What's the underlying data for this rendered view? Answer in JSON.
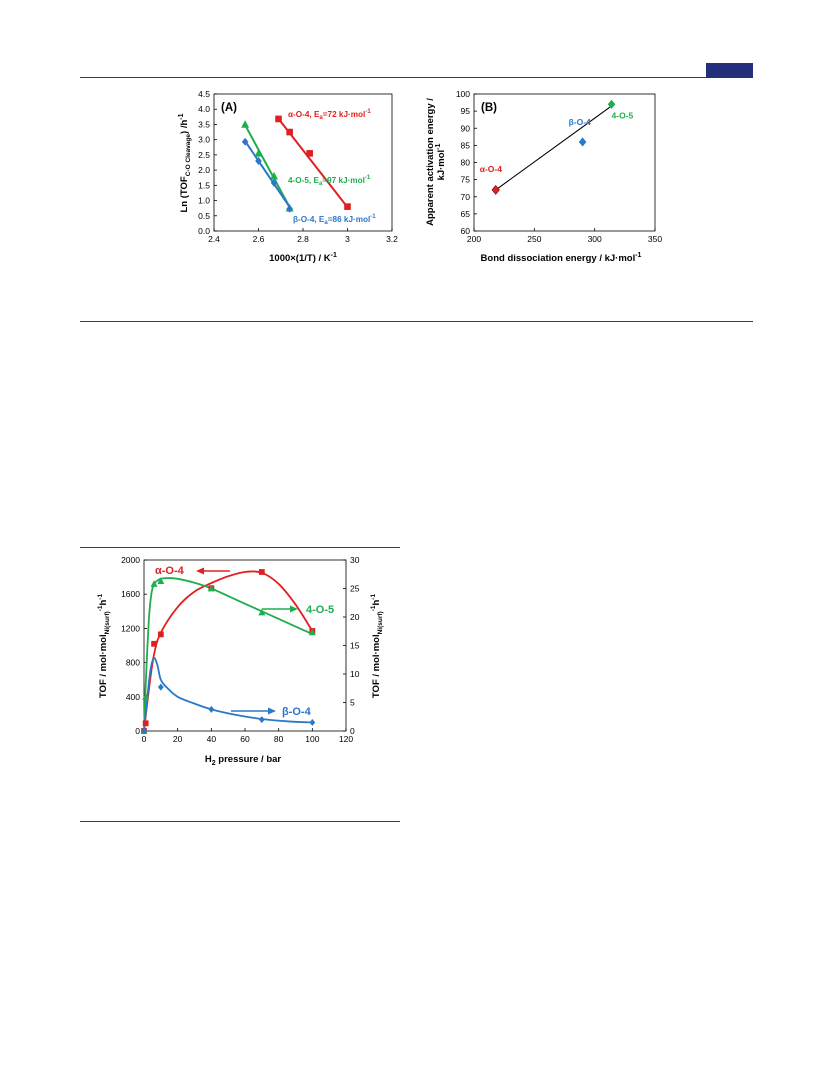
{
  "page": {
    "header_rule_color": "#2c3a86",
    "header_tab_color": "#24307a"
  },
  "colors": {
    "red": "#e02020",
    "green": "#1fae4e",
    "blue": "#2a78c8",
    "black": "#000000"
  },
  "chart_data": [
    {
      "panel": "(A)",
      "type": "scatter",
      "xlabel": "1000×(1/T) / K",
      "xlabel_sup": "-1",
      "ylabel": "Ln (TOF",
      "ylabel_sub": "C-O Cleavage",
      "ylabel_tail": ") /h",
      "ylabel_sup": "-1",
      "xlim": [
        2.4,
        3.2
      ],
      "ylim": [
        0.0,
        4.5
      ],
      "xticks": [
        "2.4",
        "2.6",
        "2.8",
        "3",
        "3.2"
      ],
      "yticks": [
        "0.0",
        "0.5",
        "1.0",
        "1.5",
        "2.0",
        "2.5",
        "3.0",
        "3.5",
        "4.0",
        "4.5"
      ],
      "series": [
        {
          "name": "α-O-4, E",
          "name_sub": "a",
          "name_tail": "=72 kJ·mol",
          "name_sup": "-1",
          "color_key": "red",
          "marker": "square",
          "points": [
            [
              2.69,
              3.68
            ],
            [
              2.74,
              3.25
            ],
            [
              2.83,
              2.55
            ],
            [
              3.0,
              0.8
            ]
          ],
          "fit": [
            [
              2.68,
              3.78
            ],
            [
              3.0,
              0.78
            ]
          ]
        },
        {
          "name": "4-O-5, E",
          "name_sub": "a",
          "name_tail": "=97 kJ·mol",
          "name_sup": "-1",
          "color_key": "green",
          "marker": "triangle",
          "points": [
            [
              2.54,
              3.5
            ],
            [
              2.6,
              2.55
            ],
            [
              2.67,
              1.8
            ],
            [
              2.74,
              0.75
            ]
          ],
          "fit": [
            [
              2.54,
              3.48
            ],
            [
              2.75,
              0.65
            ]
          ]
        },
        {
          "name": "β-O-4, E",
          "name_sub": "a",
          "name_tail": "=86 kJ·mol",
          "name_sup": "-1",
          "color_key": "blue",
          "marker": "diamond",
          "points": [
            [
              2.54,
              2.93
            ],
            [
              2.6,
              2.3
            ],
            [
              2.67,
              1.58
            ],
            [
              2.74,
              0.73
            ]
          ],
          "fit": [
            [
              2.54,
              2.95
            ],
            [
              2.75,
              0.68
            ]
          ]
        }
      ]
    },
    {
      "panel": "(B)",
      "type": "scatter",
      "xlabel": "Bond dissociation energy / kJ·mol",
      "xlabel_sup": "-1",
      "ylabel_line1": "Apparent activation energy /",
      "ylabel_line2": "kJ·mol",
      "ylabel_sup": "-1",
      "xlim": [
        200,
        350
      ],
      "ylim": [
        60,
        100
      ],
      "xticks": [
        "200",
        "250",
        "300",
        "350"
      ],
      "yticks": [
        "60",
        "65",
        "70",
        "75",
        "80",
        "85",
        "90",
        "95",
        "100"
      ],
      "points": [
        {
          "label": "α-O-4",
          "x": 218,
          "y": 72,
          "color_key": "red"
        },
        {
          "label": "β-O-4",
          "x": 290,
          "y": 86,
          "color_key": "blue"
        },
        {
          "label": "4-O-5",
          "x": 314,
          "y": 97,
          "color_key": "green"
        }
      ],
      "fit": [
        [
          218,
          72
        ],
        [
          314,
          96.5
        ]
      ]
    },
    {
      "type": "line",
      "xlabel": "H",
      "xlabel_sub": "2",
      "xlabel_tail": " pressure / bar",
      "ylabel_left": "TOF / mol·mol",
      "ylabel_left_sub": "Ni(surf)",
      "ylabel_left_sup": "-1",
      "ylabel_left_tail": "h",
      "ylabel_left_sup2": "-1",
      "ylabel_right": "TOF / mol·mol",
      "ylabel_right_sub": "Ni(surf)",
      "ylabel_right_sup": "-1",
      "ylabel_right_tail": "h",
      "ylabel_right_sup2": "-1",
      "xlim": [
        0,
        120
      ],
      "ylim_left": [
        0,
        2000
      ],
      "ylim_right": [
        0,
        30
      ],
      "xticks": [
        "0",
        "20",
        "40",
        "60",
        "80",
        "100",
        "120"
      ],
      "yticks_left": [
        "0",
        "400",
        "800",
        "1200",
        "1600",
        "2000"
      ],
      "yticks_right": [
        "0",
        "5",
        "10",
        "15",
        "20",
        "25",
        "30"
      ],
      "series": [
        {
          "name": "α-O-4",
          "axis": "left",
          "color_key": "red",
          "marker": "square",
          "points": [
            [
              0,
              0
            ],
            [
              1,
              90
            ],
            [
              6,
              1020
            ],
            [
              10,
              1130
            ],
            [
              40,
              1670
            ],
            [
              70,
              1860
            ],
            [
              100,
              1170
            ]
          ],
          "curve": [
            [
              0,
              0
            ],
            [
              3,
              500
            ],
            [
              6,
              900
            ],
            [
              10,
              1150
            ],
            [
              20,
              1450
            ],
            [
              30,
              1630
            ],
            [
              40,
              1730
            ],
            [
              50,
              1810
            ],
            [
              60,
              1860
            ],
            [
              70,
              1850
            ],
            [
              80,
              1720
            ],
            [
              90,
              1480
            ],
            [
              100,
              1170
            ]
          ]
        },
        {
          "name": "4-O-5",
          "axis": "right",
          "color_key": "green",
          "marker": "triangle",
          "points": [
            [
              0,
              0
            ],
            [
              1,
              6
            ],
            [
              6,
              25.8
            ],
            [
              10,
              26.3
            ],
            [
              40,
              25.0
            ],
            [
              70,
              20.8
            ],
            [
              100,
              17.3
            ]
          ],
          "curve": [
            [
              0,
              0
            ],
            [
              1,
              8
            ],
            [
              3,
              20
            ],
            [
              5,
              25
            ],
            [
              8,
              26.4
            ],
            [
              12,
              26.8
            ],
            [
              20,
              26.7
            ],
            [
              30,
              26
            ],
            [
              40,
              25
            ],
            [
              55,
              23
            ],
            [
              70,
              21
            ],
            [
              85,
              19
            ],
            [
              100,
              17
            ]
          ]
        },
        {
          "name": "β-O-4",
          "axis": "right",
          "color_key": "blue",
          "marker": "diamond",
          "points": [
            [
              0,
              0
            ],
            [
              10,
              7.7
            ],
            [
              40,
              3.8
            ],
            [
              70,
              2.0
            ],
            [
              100,
              1.5
            ]
          ],
          "curve": [
            [
              0,
              0
            ],
            [
              2,
              6
            ],
            [
              4,
              11
            ],
            [
              6,
              12.8
            ],
            [
              8,
              11.5
            ],
            [
              10,
              9
            ],
            [
              14,
              7.5
            ],
            [
              20,
              6
            ],
            [
              30,
              4.8
            ],
            [
              40,
              3.8
            ],
            [
              55,
              2.8
            ],
            [
              70,
              2.1
            ],
            [
              85,
              1.7
            ],
            [
              100,
              1.5
            ]
          ]
        }
      ]
    }
  ]
}
